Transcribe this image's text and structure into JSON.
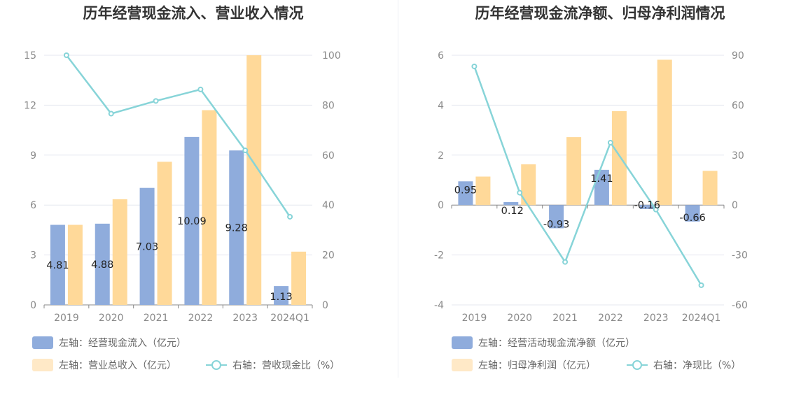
{
  "colors": {
    "bar_primary": "#8facdc",
    "bar_secondary": "#ffd999",
    "legend_secondary": "#ffe9c7",
    "line": "#87d4d8",
    "grid": "#e4e7ef",
    "axis": "#888888"
  },
  "chart_data": [
    {
      "type": "bar",
      "title": "历年经营现金流入、营业收入情况",
      "categories": [
        "2019",
        "2020",
        "2021",
        "2022",
        "2023",
        "2024Q1"
      ],
      "left_axis": {
        "ylim": [
          0,
          15
        ],
        "ticks": [
          "0",
          "3",
          "6",
          "9",
          "12",
          "15"
        ]
      },
      "right_axis": {
        "ylim": [
          0,
          100
        ],
        "ticks": [
          "0",
          "20",
          "40",
          "60",
          "80",
          "100"
        ]
      },
      "series": [
        {
          "name": "左轴：经营现金流入（亿元）",
          "kind": "bar",
          "axis": "left",
          "values": [
            4.81,
            4.88,
            7.03,
            10.09,
            9.28,
            1.13
          ],
          "labels": [
            "4.81",
            "4.88",
            "7.03",
            "10.09",
            "9.28",
            "1.13"
          ]
        },
        {
          "name": "左轴：营业总收入（亿元）",
          "kind": "bar",
          "axis": "left",
          "values": [
            4.81,
            6.35,
            8.6,
            11.7,
            15.0,
            3.2
          ]
        },
        {
          "name": "右轴：营收现金比（%）",
          "kind": "line",
          "axis": "right",
          "values": [
            100,
            76.6,
            81.7,
            86.3,
            61.9,
            35.3
          ]
        }
      ],
      "legend": {
        "placement": "bottom-left"
      }
    },
    {
      "type": "bar",
      "title": "历年经营现金流净额、归母净利润情况",
      "categories": [
        "2019",
        "2020",
        "2021",
        "2022",
        "2023",
        "2024Q1"
      ],
      "left_axis": {
        "ylim": [
          -4,
          6
        ],
        "ticks": [
          "-4",
          "-2",
          "0",
          "2",
          "4",
          "6"
        ]
      },
      "right_axis": {
        "ylim": [
          -60,
          90
        ],
        "ticks": [
          "-60",
          "-30",
          "0",
          "30",
          "60",
          "90"
        ]
      },
      "series": [
        {
          "name": "左轴：经营活动现金流净额（亿元）",
          "kind": "bar",
          "axis": "left",
          "values": [
            0.95,
            0.12,
            -0.93,
            1.41,
            -0.16,
            -0.66
          ],
          "labels": [
            "0.95",
            "0.12",
            "-0.93",
            "1.41",
            "-0.16",
            "-0.66"
          ]
        },
        {
          "name": "左轴：归母净利润（亿元）",
          "kind": "bar",
          "axis": "left",
          "values": [
            1.14,
            1.63,
            2.72,
            3.76,
            5.82,
            1.37
          ]
        },
        {
          "name": "右轴：净现比（%）",
          "kind": "line",
          "axis": "right",
          "values": [
            83.3,
            7.4,
            -34.2,
            37.5,
            -2.7,
            -48.2
          ]
        }
      ],
      "legend": {
        "placement": "bottom-left"
      }
    }
  ]
}
